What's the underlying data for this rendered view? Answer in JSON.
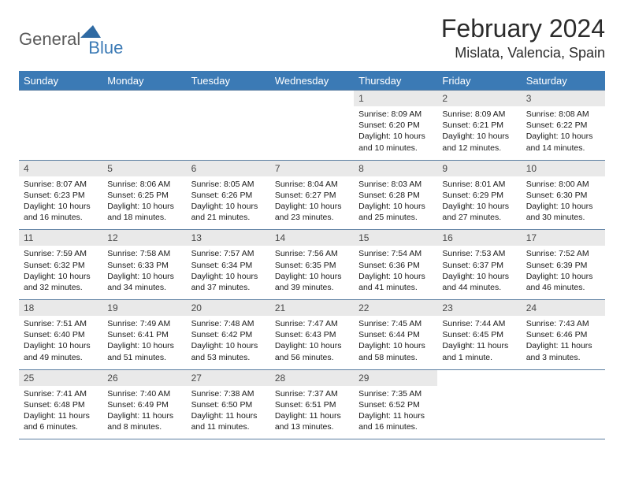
{
  "logo": {
    "text1": "General",
    "text2": "Blue",
    "tri_color": "#2f6aa3"
  },
  "title": "February 2024",
  "location": "Mislata, Valencia, Spain",
  "colors": {
    "header_bg": "#3b7ab5",
    "header_text": "#ffffff",
    "row_border": "#5a7da0",
    "daynum_bg": "#e9e9e9",
    "daynum_text": "#484848",
    "body_text": "#1a1a1a",
    "page_bg": "#ffffff"
  },
  "typography": {
    "title_fontsize": 32,
    "location_fontsize": 18,
    "dayheader_fontsize": 13,
    "daynum_fontsize": 12,
    "body_fontsize": 10.5
  },
  "day_headers": [
    "Sunday",
    "Monday",
    "Tuesday",
    "Wednesday",
    "Thursday",
    "Friday",
    "Saturday"
  ],
  "weeks": [
    [
      {
        "n": "",
        "sr": "",
        "ss": "",
        "dl": ""
      },
      {
        "n": "",
        "sr": "",
        "ss": "",
        "dl": ""
      },
      {
        "n": "",
        "sr": "",
        "ss": "",
        "dl": ""
      },
      {
        "n": "",
        "sr": "",
        "ss": "",
        "dl": ""
      },
      {
        "n": "1",
        "sr": "Sunrise: 8:09 AM",
        "ss": "Sunset: 6:20 PM",
        "dl": "Daylight: 10 hours and 10 minutes."
      },
      {
        "n": "2",
        "sr": "Sunrise: 8:09 AM",
        "ss": "Sunset: 6:21 PM",
        "dl": "Daylight: 10 hours and 12 minutes."
      },
      {
        "n": "3",
        "sr": "Sunrise: 8:08 AM",
        "ss": "Sunset: 6:22 PM",
        "dl": "Daylight: 10 hours and 14 minutes."
      }
    ],
    [
      {
        "n": "4",
        "sr": "Sunrise: 8:07 AM",
        "ss": "Sunset: 6:23 PM",
        "dl": "Daylight: 10 hours and 16 minutes."
      },
      {
        "n": "5",
        "sr": "Sunrise: 8:06 AM",
        "ss": "Sunset: 6:25 PM",
        "dl": "Daylight: 10 hours and 18 minutes."
      },
      {
        "n": "6",
        "sr": "Sunrise: 8:05 AM",
        "ss": "Sunset: 6:26 PM",
        "dl": "Daylight: 10 hours and 21 minutes."
      },
      {
        "n": "7",
        "sr": "Sunrise: 8:04 AM",
        "ss": "Sunset: 6:27 PM",
        "dl": "Daylight: 10 hours and 23 minutes."
      },
      {
        "n": "8",
        "sr": "Sunrise: 8:03 AM",
        "ss": "Sunset: 6:28 PM",
        "dl": "Daylight: 10 hours and 25 minutes."
      },
      {
        "n": "9",
        "sr": "Sunrise: 8:01 AM",
        "ss": "Sunset: 6:29 PM",
        "dl": "Daylight: 10 hours and 27 minutes."
      },
      {
        "n": "10",
        "sr": "Sunrise: 8:00 AM",
        "ss": "Sunset: 6:30 PM",
        "dl": "Daylight: 10 hours and 30 minutes."
      }
    ],
    [
      {
        "n": "11",
        "sr": "Sunrise: 7:59 AM",
        "ss": "Sunset: 6:32 PM",
        "dl": "Daylight: 10 hours and 32 minutes."
      },
      {
        "n": "12",
        "sr": "Sunrise: 7:58 AM",
        "ss": "Sunset: 6:33 PM",
        "dl": "Daylight: 10 hours and 34 minutes."
      },
      {
        "n": "13",
        "sr": "Sunrise: 7:57 AM",
        "ss": "Sunset: 6:34 PM",
        "dl": "Daylight: 10 hours and 37 minutes."
      },
      {
        "n": "14",
        "sr": "Sunrise: 7:56 AM",
        "ss": "Sunset: 6:35 PM",
        "dl": "Daylight: 10 hours and 39 minutes."
      },
      {
        "n": "15",
        "sr": "Sunrise: 7:54 AM",
        "ss": "Sunset: 6:36 PM",
        "dl": "Daylight: 10 hours and 41 minutes."
      },
      {
        "n": "16",
        "sr": "Sunrise: 7:53 AM",
        "ss": "Sunset: 6:37 PM",
        "dl": "Daylight: 10 hours and 44 minutes."
      },
      {
        "n": "17",
        "sr": "Sunrise: 7:52 AM",
        "ss": "Sunset: 6:39 PM",
        "dl": "Daylight: 10 hours and 46 minutes."
      }
    ],
    [
      {
        "n": "18",
        "sr": "Sunrise: 7:51 AM",
        "ss": "Sunset: 6:40 PM",
        "dl": "Daylight: 10 hours and 49 minutes."
      },
      {
        "n": "19",
        "sr": "Sunrise: 7:49 AM",
        "ss": "Sunset: 6:41 PM",
        "dl": "Daylight: 10 hours and 51 minutes."
      },
      {
        "n": "20",
        "sr": "Sunrise: 7:48 AM",
        "ss": "Sunset: 6:42 PM",
        "dl": "Daylight: 10 hours and 53 minutes."
      },
      {
        "n": "21",
        "sr": "Sunrise: 7:47 AM",
        "ss": "Sunset: 6:43 PM",
        "dl": "Daylight: 10 hours and 56 minutes."
      },
      {
        "n": "22",
        "sr": "Sunrise: 7:45 AM",
        "ss": "Sunset: 6:44 PM",
        "dl": "Daylight: 10 hours and 58 minutes."
      },
      {
        "n": "23",
        "sr": "Sunrise: 7:44 AM",
        "ss": "Sunset: 6:45 PM",
        "dl": "Daylight: 11 hours and 1 minute."
      },
      {
        "n": "24",
        "sr": "Sunrise: 7:43 AM",
        "ss": "Sunset: 6:46 PM",
        "dl": "Daylight: 11 hours and 3 minutes."
      }
    ],
    [
      {
        "n": "25",
        "sr": "Sunrise: 7:41 AM",
        "ss": "Sunset: 6:48 PM",
        "dl": "Daylight: 11 hours and 6 minutes."
      },
      {
        "n": "26",
        "sr": "Sunrise: 7:40 AM",
        "ss": "Sunset: 6:49 PM",
        "dl": "Daylight: 11 hours and 8 minutes."
      },
      {
        "n": "27",
        "sr": "Sunrise: 7:38 AM",
        "ss": "Sunset: 6:50 PM",
        "dl": "Daylight: 11 hours and 11 minutes."
      },
      {
        "n": "28",
        "sr": "Sunrise: 7:37 AM",
        "ss": "Sunset: 6:51 PM",
        "dl": "Daylight: 11 hours and 13 minutes."
      },
      {
        "n": "29",
        "sr": "Sunrise: 7:35 AM",
        "ss": "Sunset: 6:52 PM",
        "dl": "Daylight: 11 hours and 16 minutes."
      },
      {
        "n": "",
        "sr": "",
        "ss": "",
        "dl": ""
      },
      {
        "n": "",
        "sr": "",
        "ss": "",
        "dl": ""
      }
    ]
  ]
}
